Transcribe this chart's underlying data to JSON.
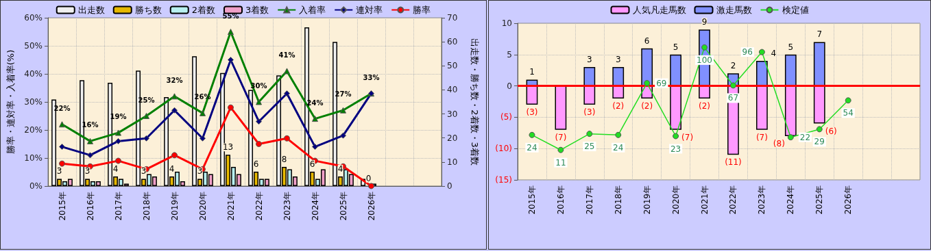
{
  "chart_data": [
    {
      "type": "bar",
      "categories": [
        "2015年",
        "2016年",
        "2017年",
        "2018年",
        "2019年",
        "2020年",
        "2021年",
        "2022年",
        "2023年",
        "2024年",
        "2025年",
        "2026年",
        null,
        null
      ],
      "series": [
        {
          "name": "出走数",
          "color": "#f0f0f0",
          "axis": "y2",
          "values": [
            36,
            44,
            43,
            48,
            37,
            54,
            47,
            40,
            46,
            66,
            60,
            3,
            null,
            null
          ]
        },
        {
          "name": "勝ち数",
          "color": "#e6b800",
          "axis": "y2",
          "data_labels": true,
          "values": [
            3,
            3,
            4,
            3,
            4,
            3,
            13,
            6,
            8,
            6,
            4,
            0,
            null,
            null
          ]
        },
        {
          "name": "2着数",
          "color": "#b8f0f0",
          "axis": "y2",
          "values": [
            2,
            2,
            3,
            5,
            6,
            6,
            8,
            3,
            7,
            3,
            7,
            1,
            null,
            null
          ]
        },
        {
          "name": "3着数",
          "color": "#f0a0c8",
          "axis": "y2",
          "values": [
            3,
            2,
            1,
            4,
            2,
            5,
            5,
            3,
            4,
            7,
            5,
            0,
            null,
            null
          ]
        },
        {
          "name": "入着率",
          "type": "line",
          "color": "#008000",
          "marker": "triangle",
          "values": [
            22,
            16,
            19,
            25,
            32,
            26,
            55,
            30,
            41,
            24,
            27,
            33,
            null,
            null
          ],
          "value_labels": [
            "22%",
            "16%",
            "19%",
            "25%",
            "32%",
            "26%",
            "55%",
            "30%",
            "41%",
            "24%",
            "27%",
            "33%",
            null,
            null
          ]
        },
        {
          "name": "連対率",
          "type": "line",
          "color": "#000080",
          "marker": "diamond",
          "values": [
            14,
            11,
            16,
            17,
            27,
            17,
            45,
            23,
            33,
            14,
            18,
            33,
            null,
            null
          ]
        },
        {
          "name": "勝率",
          "type": "line",
          "color": "#ff0000",
          "marker": "circle",
          "values": [
            8,
            7,
            9,
            6,
            11,
            6,
            28,
            15,
            17,
            9,
            7,
            0,
            null,
            null
          ]
        }
      ],
      "ylabel": "勝率・連対率・入着率(%)",
      "y2label": "出走数・勝ち数・2着数・3着数",
      "ylim": [
        0,
        60
      ],
      "yticks": [
        {
          "value": 0,
          "label": "0%"
        },
        {
          "value": 10,
          "label": "10%"
        },
        {
          "value": 20,
          "label": "20%"
        },
        {
          "value": 30,
          "label": "30%"
        },
        {
          "value": 40,
          "label": "40%"
        },
        {
          "value": 50,
          "label": "50%"
        },
        {
          "value": 60,
          "label": "60%"
        }
      ],
      "y2lim": [
        0,
        70
      ],
      "y2ticks": [
        0,
        10,
        20,
        30,
        40,
        50,
        60,
        70
      ],
      "legend": "top",
      "grid": true
    },
    {
      "type": "bar",
      "stacked": true,
      "categories": [
        "2015年",
        "2016年",
        "2017年",
        "2018年",
        "2019年",
        "2020年",
        "2021年",
        "2022年",
        "2023年",
        "2024年",
        "2025年",
        "2026年",
        null,
        null
      ],
      "series": [
        {
          "name": "人気凡走馬数",
          "color": "#ff99ff",
          "values": [
            -3,
            -7,
            -3,
            -2,
            -2,
            -7,
            -2,
            -11,
            -7,
            -8,
            -6,
            null,
            null,
            null
          ],
          "value_labels": [
            "(3)",
            "(7)",
            "(3)",
            "(2)",
            "(2)",
            "(7)",
            "(2)",
            "(11)",
            "(7)",
            "(8)",
            "(6)",
            null,
            null,
            null
          ]
        },
        {
          "name": "激走馬数",
          "color": "#8090ff",
          "values": [
            1,
            null,
            3,
            3,
            6,
            5,
            9,
            2,
            4,
            5,
            7,
            null,
            null,
            null
          ],
          "data_labels": true
        },
        {
          "name": "検定値",
          "type": "line",
          "axis": "y2",
          "color": "#22dd22",
          "marker": "circle",
          "data_labels": true,
          "values": [
            24,
            11,
            25,
            24,
            69,
            23,
            100,
            67,
            96,
            22,
            29,
            54,
            null,
            null
          ]
        }
      ],
      "ylim": [
        -15,
        10
      ],
      "yticks": [
        {
          "value": -15,
          "label": "(15)"
        },
        {
          "value": -10,
          "label": "(10)"
        },
        {
          "value": -5,
          "label": "(5)"
        },
        0,
        5,
        10
      ],
      "y2lim": [
        -15,
        121
      ],
      "ref_lines": [
        {
          "axis": "y",
          "value": 0,
          "color": "#ff0000"
        }
      ],
      "legend": "top",
      "grid": true
    }
  ]
}
